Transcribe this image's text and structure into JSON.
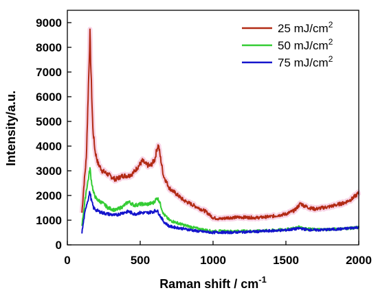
{
  "chart_data": {
    "type": "line",
    "xlabel": "Raman shift / cm",
    "xlabel_sup": "-1",
    "ylabel": "Intensity/a.u.",
    "xlim": [
      0,
      2000
    ],
    "ylim": [
      0,
      9500
    ],
    "x_ticks": [
      0,
      500,
      1000,
      1500,
      2000
    ],
    "y_ticks": [
      0,
      1000,
      2000,
      3000,
      4000,
      5000,
      6000,
      7000,
      8000,
      9000
    ],
    "grid": false,
    "legend_position": "top-right",
    "series": [
      {
        "name": "25 mJ/cm",
        "name_sup": "2",
        "color": "#b22a14",
        "x": [
          100,
          115,
          130,
          145,
          155,
          165,
          175,
          190,
          210,
          240,
          280,
          330,
          380,
          420,
          450,
          490,
          515,
          540,
          570,
          600,
          615,
          625,
          640,
          660,
          700,
          750,
          800,
          850,
          900,
          950,
          1000,
          1050,
          1100,
          1200,
          1300,
          1400,
          1500,
          1560,
          1590,
          1600,
          1620,
          1660,
          1700,
          1800,
          1900,
          1950,
          2000
        ],
        "y": [
          1300,
          2500,
          3500,
          6500,
          8550,
          6500,
          4700,
          3800,
          3300,
          3000,
          2850,
          2650,
          2800,
          2800,
          2900,
          3200,
          3400,
          3250,
          3200,
          3450,
          3900,
          4050,
          3500,
          2800,
          2300,
          2050,
          1800,
          1650,
          1500,
          1350,
          1100,
          1050,
          1100,
          1120,
          1100,
          1150,
          1250,
          1400,
          1600,
          1680,
          1600,
          1500,
          1450,
          1550,
          1700,
          1850,
          2100
        ]
      },
      {
        "name": "50 mJ/cm",
        "name_sup": "2",
        "color": "#33cc33",
        "x": [
          100,
          115,
          130,
          145,
          155,
          165,
          180,
          200,
          240,
          280,
          330,
          380,
          420,
          460,
          500,
          550,
          590,
          615,
          630,
          660,
          700,
          800,
          900,
          1000,
          1050,
          1100,
          1200,
          1300,
          1400,
          1500,
          1560,
          1600,
          1640,
          1700,
          1800,
          1900,
          2000
        ],
        "y": [
          800,
          1500,
          2200,
          2700,
          3100,
          2600,
          2100,
          1850,
          1700,
          1500,
          1400,
          1550,
          1750,
          1600,
          1650,
          1650,
          1700,
          1900,
          1800,
          1250,
          1000,
          800,
          650,
          550,
          560,
          550,
          560,
          560,
          590,
          620,
          680,
          730,
          650,
          620,
          630,
          660,
          700
        ]
      },
      {
        "name": "75 mJ/cm",
        "name_sup": "2",
        "color": "#1414cc",
        "x": [
          100,
          115,
          130,
          145,
          155,
          165,
          180,
          200,
          240,
          280,
          330,
          380,
          420,
          460,
          500,
          550,
          590,
          615,
          630,
          660,
          700,
          800,
          900,
          1000,
          1050,
          1100,
          1200,
          1300,
          1400,
          1500,
          1560,
          1600,
          1640,
          1700,
          1800,
          1900,
          2000
        ],
        "y": [
          500,
          1100,
          1600,
          1900,
          2150,
          1800,
          1500,
          1400,
          1300,
          1250,
          1200,
          1300,
          1350,
          1250,
          1300,
          1300,
          1350,
          1400,
          1250,
          950,
          750,
          650,
          550,
          500,
          510,
          500,
          520,
          540,
          570,
          600,
          640,
          670,
          620,
          600,
          620,
          650,
          720
        ]
      }
    ]
  }
}
